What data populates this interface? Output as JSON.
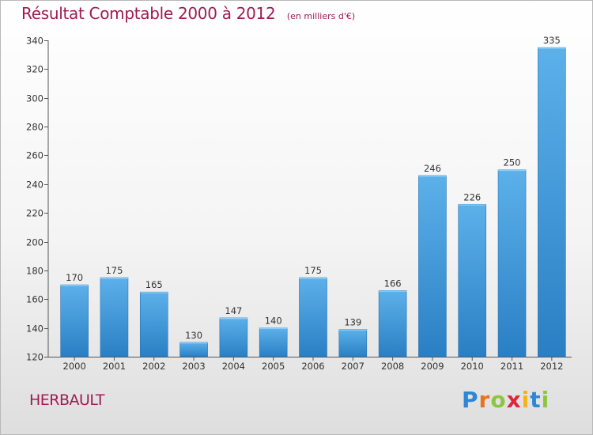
{
  "header": {
    "title": "Résultat Comptable 2000 à 2012",
    "subtitle": "(en milliers d'€)"
  },
  "footer": {
    "commune": "HERBAULT",
    "brand_letters": [
      "P",
      "r",
      "o",
      "x",
      "i",
      "t",
      "i"
    ],
    "brand_colors": [
      "#2e86d6",
      "#e8731a",
      "#8cc63f",
      "#d9283c",
      "#f2b31b",
      "#2e86d6",
      "#8cc63f"
    ]
  },
  "chart_data": {
    "type": "bar",
    "categories": [
      "2000",
      "2001",
      "2002",
      "2003",
      "2004",
      "2005",
      "2006",
      "2007",
      "2008",
      "2009",
      "2010",
      "2011",
      "2012"
    ],
    "values": [
      170,
      175,
      165,
      130,
      147,
      140,
      175,
      139,
      166,
      246,
      226,
      250,
      335
    ],
    "data_labels": [
      "170",
      "175",
      "165",
      "130",
      "147",
      "140",
      "175",
      "139",
      "166",
      "246",
      "226",
      "250",
      "335"
    ],
    "ylim": [
      120,
      340
    ],
    "yticks": [
      120,
      140,
      160,
      180,
      200,
      220,
      240,
      260,
      280,
      300,
      320,
      340
    ],
    "ytick_labels": [
      "120",
      "140",
      "160",
      "180",
      "200",
      "220",
      "240",
      "260",
      "280",
      "300",
      "320",
      "340"
    ],
    "grid": false,
    "bar_color": "#3f9ee0"
  }
}
